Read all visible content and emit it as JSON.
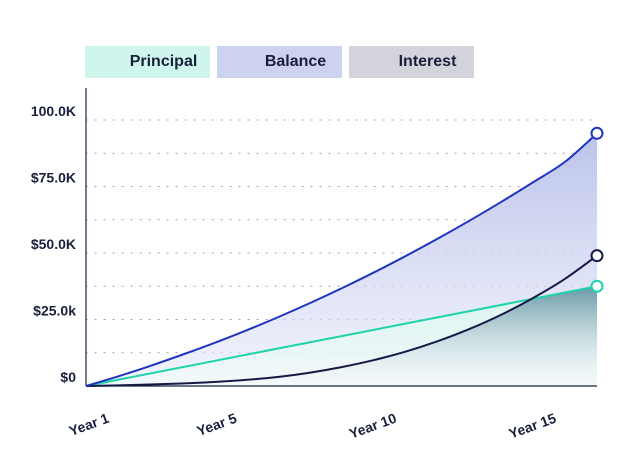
{
  "colors": {
    "principal": "#1ed3aa",
    "balance": "#1f35c2",
    "interest": "#141a45",
    "principal_legend": "#cef6ec",
    "balance_legend": "#ccd2f0",
    "interest_legend": "#d3d3dc",
    "axis": "#1a1f3c"
  },
  "chart_data": {
    "type": "area",
    "legend": [
      "Principal",
      "Balance",
      "Interest"
    ],
    "legend_position": "top-left",
    "grid": true,
    "x_ticks": [
      {
        "year": 1,
        "label": "Year 1"
      },
      {
        "year": 5,
        "label": "Year 5"
      },
      {
        "year": 10,
        "label": "Year 10"
      },
      {
        "year": 15,
        "label": "Year 15"
      }
    ],
    "xlim": [
      1,
      17
    ],
    "y_ticks": [
      {
        "value": 0,
        "label": "$0"
      },
      {
        "value": 25000,
        "label": "$25.0k"
      },
      {
        "value": 50000,
        "label": "$50.0K"
      },
      {
        "value": 75000,
        "label": "$75.0K"
      },
      {
        "value": 100000,
        "label": "100.0K"
      }
    ],
    "ylim": [
      0,
      100000
    ],
    "series": [
      {
        "name": "Principal",
        "x": [
          1,
          17
        ],
        "y": [
          0,
          37500
        ]
      },
      {
        "name": "Balance",
        "x": [
          1,
          2,
          3,
          4,
          5,
          6,
          7,
          8,
          9,
          10,
          11,
          12,
          13,
          14,
          15,
          16,
          17
        ],
        "y": [
          0,
          3600,
          7500,
          11700,
          16100,
          20800,
          25800,
          31100,
          36700,
          42600,
          48800,
          55300,
          62100,
          69200,
          76600,
          84300,
          95000
        ]
      },
      {
        "name": "Interest",
        "x": [
          1,
          2,
          3,
          4,
          5,
          6,
          7,
          8,
          9,
          10,
          11,
          12,
          13,
          14,
          15,
          16,
          17
        ],
        "y": [
          0,
          250,
          550,
          950,
          1500,
          2300,
          3400,
          5000,
          7100,
          9700,
          12900,
          16800,
          21400,
          26800,
          33100,
          40300,
          49000
        ]
      }
    ]
  }
}
